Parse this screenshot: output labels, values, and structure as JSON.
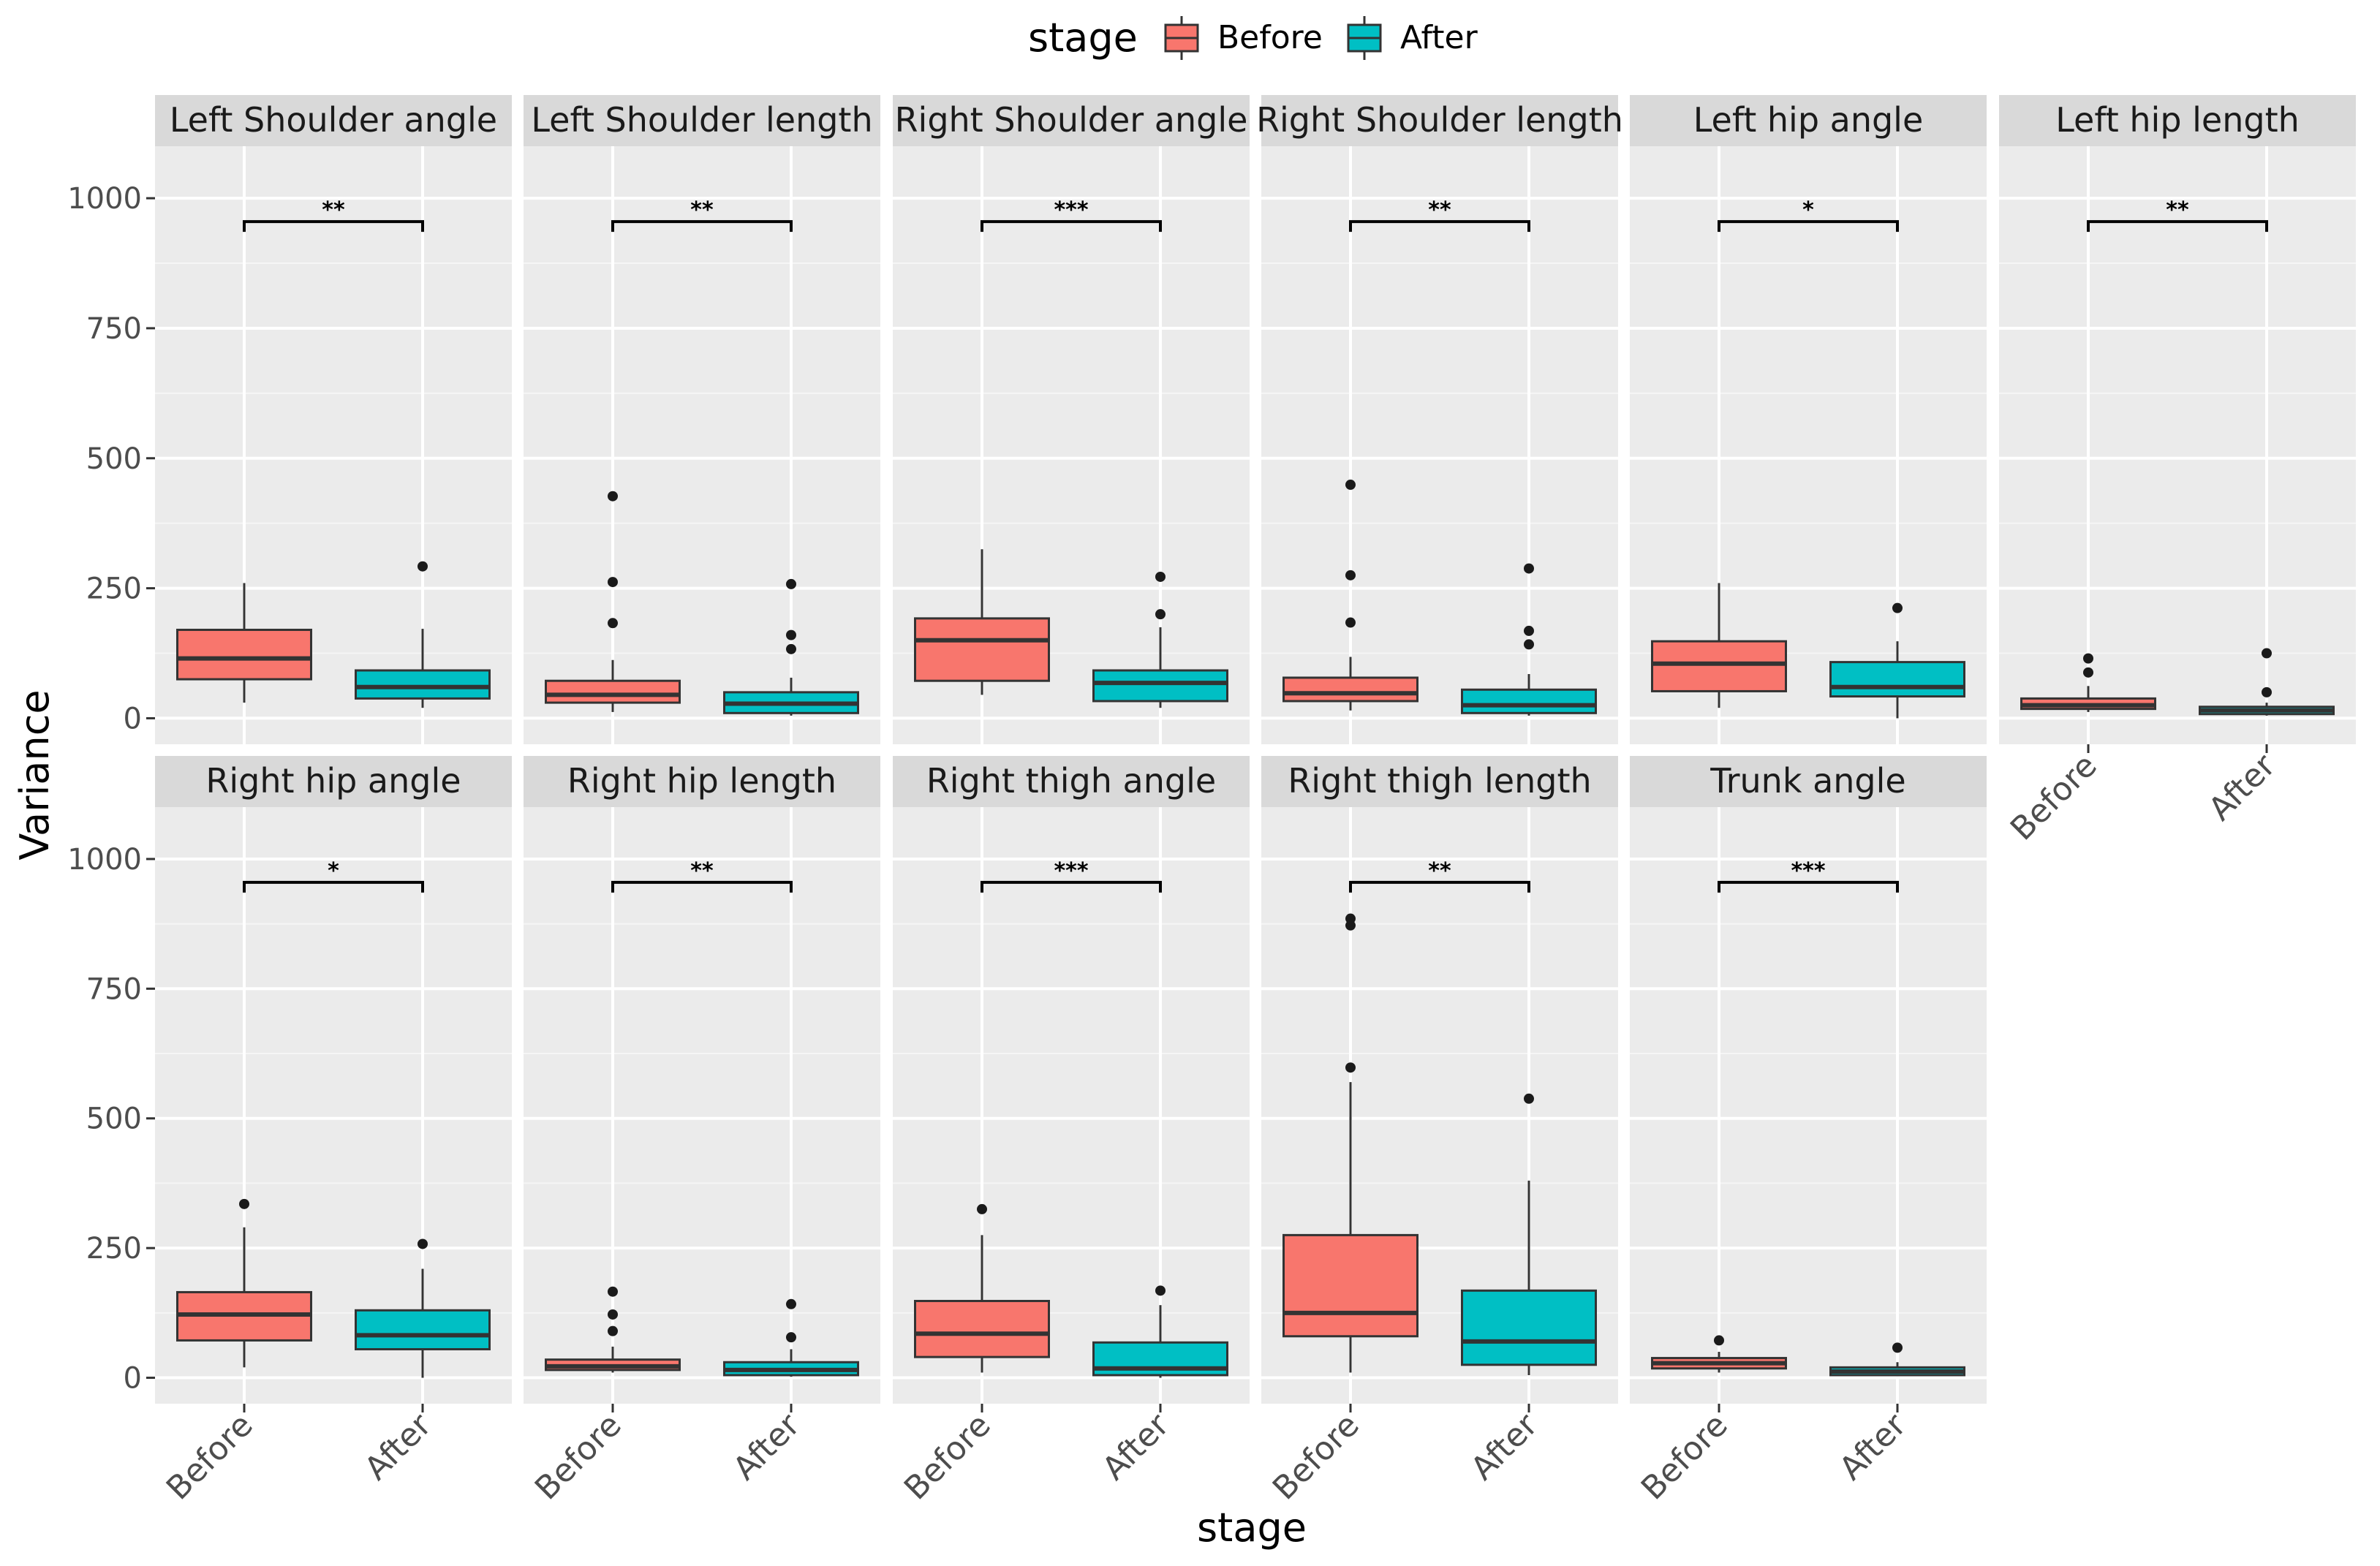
{
  "chart_data": {
    "type": "box",
    "ylabel": "Variance",
    "xlabel": "stage",
    "ylim": [
      -50,
      1100
    ],
    "yticks": [
      0,
      250,
      500,
      750,
      1000
    ],
    "categories": [
      "Before",
      "After"
    ],
    "legend": {
      "title": "stage",
      "position": "top",
      "entries": [
        {
          "label": "Before",
          "color": "#F8766D"
        },
        {
          "label": "After",
          "color": "#00BFC4"
        }
      ]
    },
    "panels": [
      {
        "title": "Left Shoulder angle",
        "significance": "**",
        "before": {
          "lower": 30,
          "q1": 75,
          "median": 115,
          "q3": 170,
          "upper": 260,
          "outliers": []
        },
        "after": {
          "lower": 20,
          "q1": 38,
          "median": 60,
          "q3": 92,
          "upper": 172,
          "outliers": [
            292
          ]
        }
      },
      {
        "title": "Left Shoulder length",
        "significance": "**",
        "before": {
          "lower": 12,
          "q1": 30,
          "median": 45,
          "q3": 72,
          "upper": 112,
          "outliers": [
            183,
            262,
            427
          ]
        },
        "after": {
          "lower": 5,
          "q1": 10,
          "median": 28,
          "q3": 50,
          "upper": 78,
          "outliers": [
            133,
            160,
            258
          ]
        },
        "rotate_xticks": true
      },
      {
        "title": "Right Shoulder angle",
        "significance": "***",
        "before": {
          "lower": 45,
          "q1": 72,
          "median": 150,
          "q3": 192,
          "upper": 325,
          "outliers": []
        },
        "after": {
          "lower": 20,
          "q1": 33,
          "median": 68,
          "q3": 92,
          "upper": 175,
          "outliers": [
            200,
            272
          ]
        }
      },
      {
        "title": "Right Shoulder length",
        "significance": "**",
        "before": {
          "lower": 15,
          "q1": 33,
          "median": 48,
          "q3": 78,
          "upper": 118,
          "outliers": [
            184,
            275,
            449
          ]
        },
        "after": {
          "lower": 5,
          "q1": 10,
          "median": 25,
          "q3": 55,
          "upper": 85,
          "outliers": [
            142,
            168,
            288
          ]
        }
      },
      {
        "title": "Left hip angle",
        "significance": "*",
        "before": {
          "lower": 20,
          "q1": 52,
          "median": 105,
          "q3": 148,
          "upper": 260,
          "outliers": []
        },
        "after": {
          "lower": 0,
          "q1": 42,
          "median": 60,
          "q3": 108,
          "upper": 148,
          "outliers": [
            212
          ]
        }
      },
      {
        "title": "Left hip length",
        "significance": "**",
        "before": {
          "lower": 12,
          "q1": 18,
          "median": 25,
          "q3": 38,
          "upper": 62,
          "outliers": [
            88,
            115
          ]
        },
        "after": {
          "lower": 5,
          "q1": 8,
          "median": 15,
          "q3": 22,
          "upper": 30,
          "outliers": [
            50,
            125
          ]
        },
        "show_xticks": true
      },
      {
        "title": "Right hip angle",
        "significance": "*",
        "before": {
          "lower": 20,
          "q1": 72,
          "median": 122,
          "q3": 165,
          "upper": 290,
          "outliers": [
            335
          ]
        },
        "after": {
          "lower": 0,
          "q1": 55,
          "median": 82,
          "q3": 130,
          "upper": 210,
          "outliers": [
            258
          ]
        }
      },
      {
        "title": "Right hip length",
        "significance": "**",
        "before": {
          "lower": 10,
          "q1": 15,
          "median": 22,
          "q3": 35,
          "upper": 60,
          "outliers": [
            90,
            122,
            166
          ]
        },
        "after": {
          "lower": 2,
          "q1": 5,
          "median": 15,
          "q3": 30,
          "upper": 55,
          "outliers": [
            78,
            142
          ]
        }
      },
      {
        "title": "Right thigh angle",
        "significance": "***",
        "before": {
          "lower": 10,
          "q1": 40,
          "median": 85,
          "q3": 148,
          "upper": 275,
          "outliers": [
            325
          ]
        },
        "after": {
          "lower": 0,
          "q1": 5,
          "median": 18,
          "q3": 68,
          "upper": 140,
          "outliers": [
            168
          ]
        }
      },
      {
        "title": "Right thigh length",
        "significance": "**",
        "before": {
          "lower": 10,
          "q1": 80,
          "median": 125,
          "q3": 275,
          "upper": 570,
          "outliers": [
            598,
            872,
            885
          ]
        },
        "after": {
          "lower": 5,
          "q1": 25,
          "median": 70,
          "q3": 168,
          "upper": 380,
          "outliers": [
            538
          ]
        }
      },
      {
        "title": "Trunk angle",
        "significance": "***",
        "before": {
          "lower": 10,
          "q1": 18,
          "median": 28,
          "q3": 38,
          "upper": 50,
          "outliers": [
            72
          ]
        },
        "after": {
          "lower": 3,
          "q1": 5,
          "median": 12,
          "q3": 20,
          "upper": 30,
          "outliers": [
            58
          ]
        }
      }
    ]
  }
}
